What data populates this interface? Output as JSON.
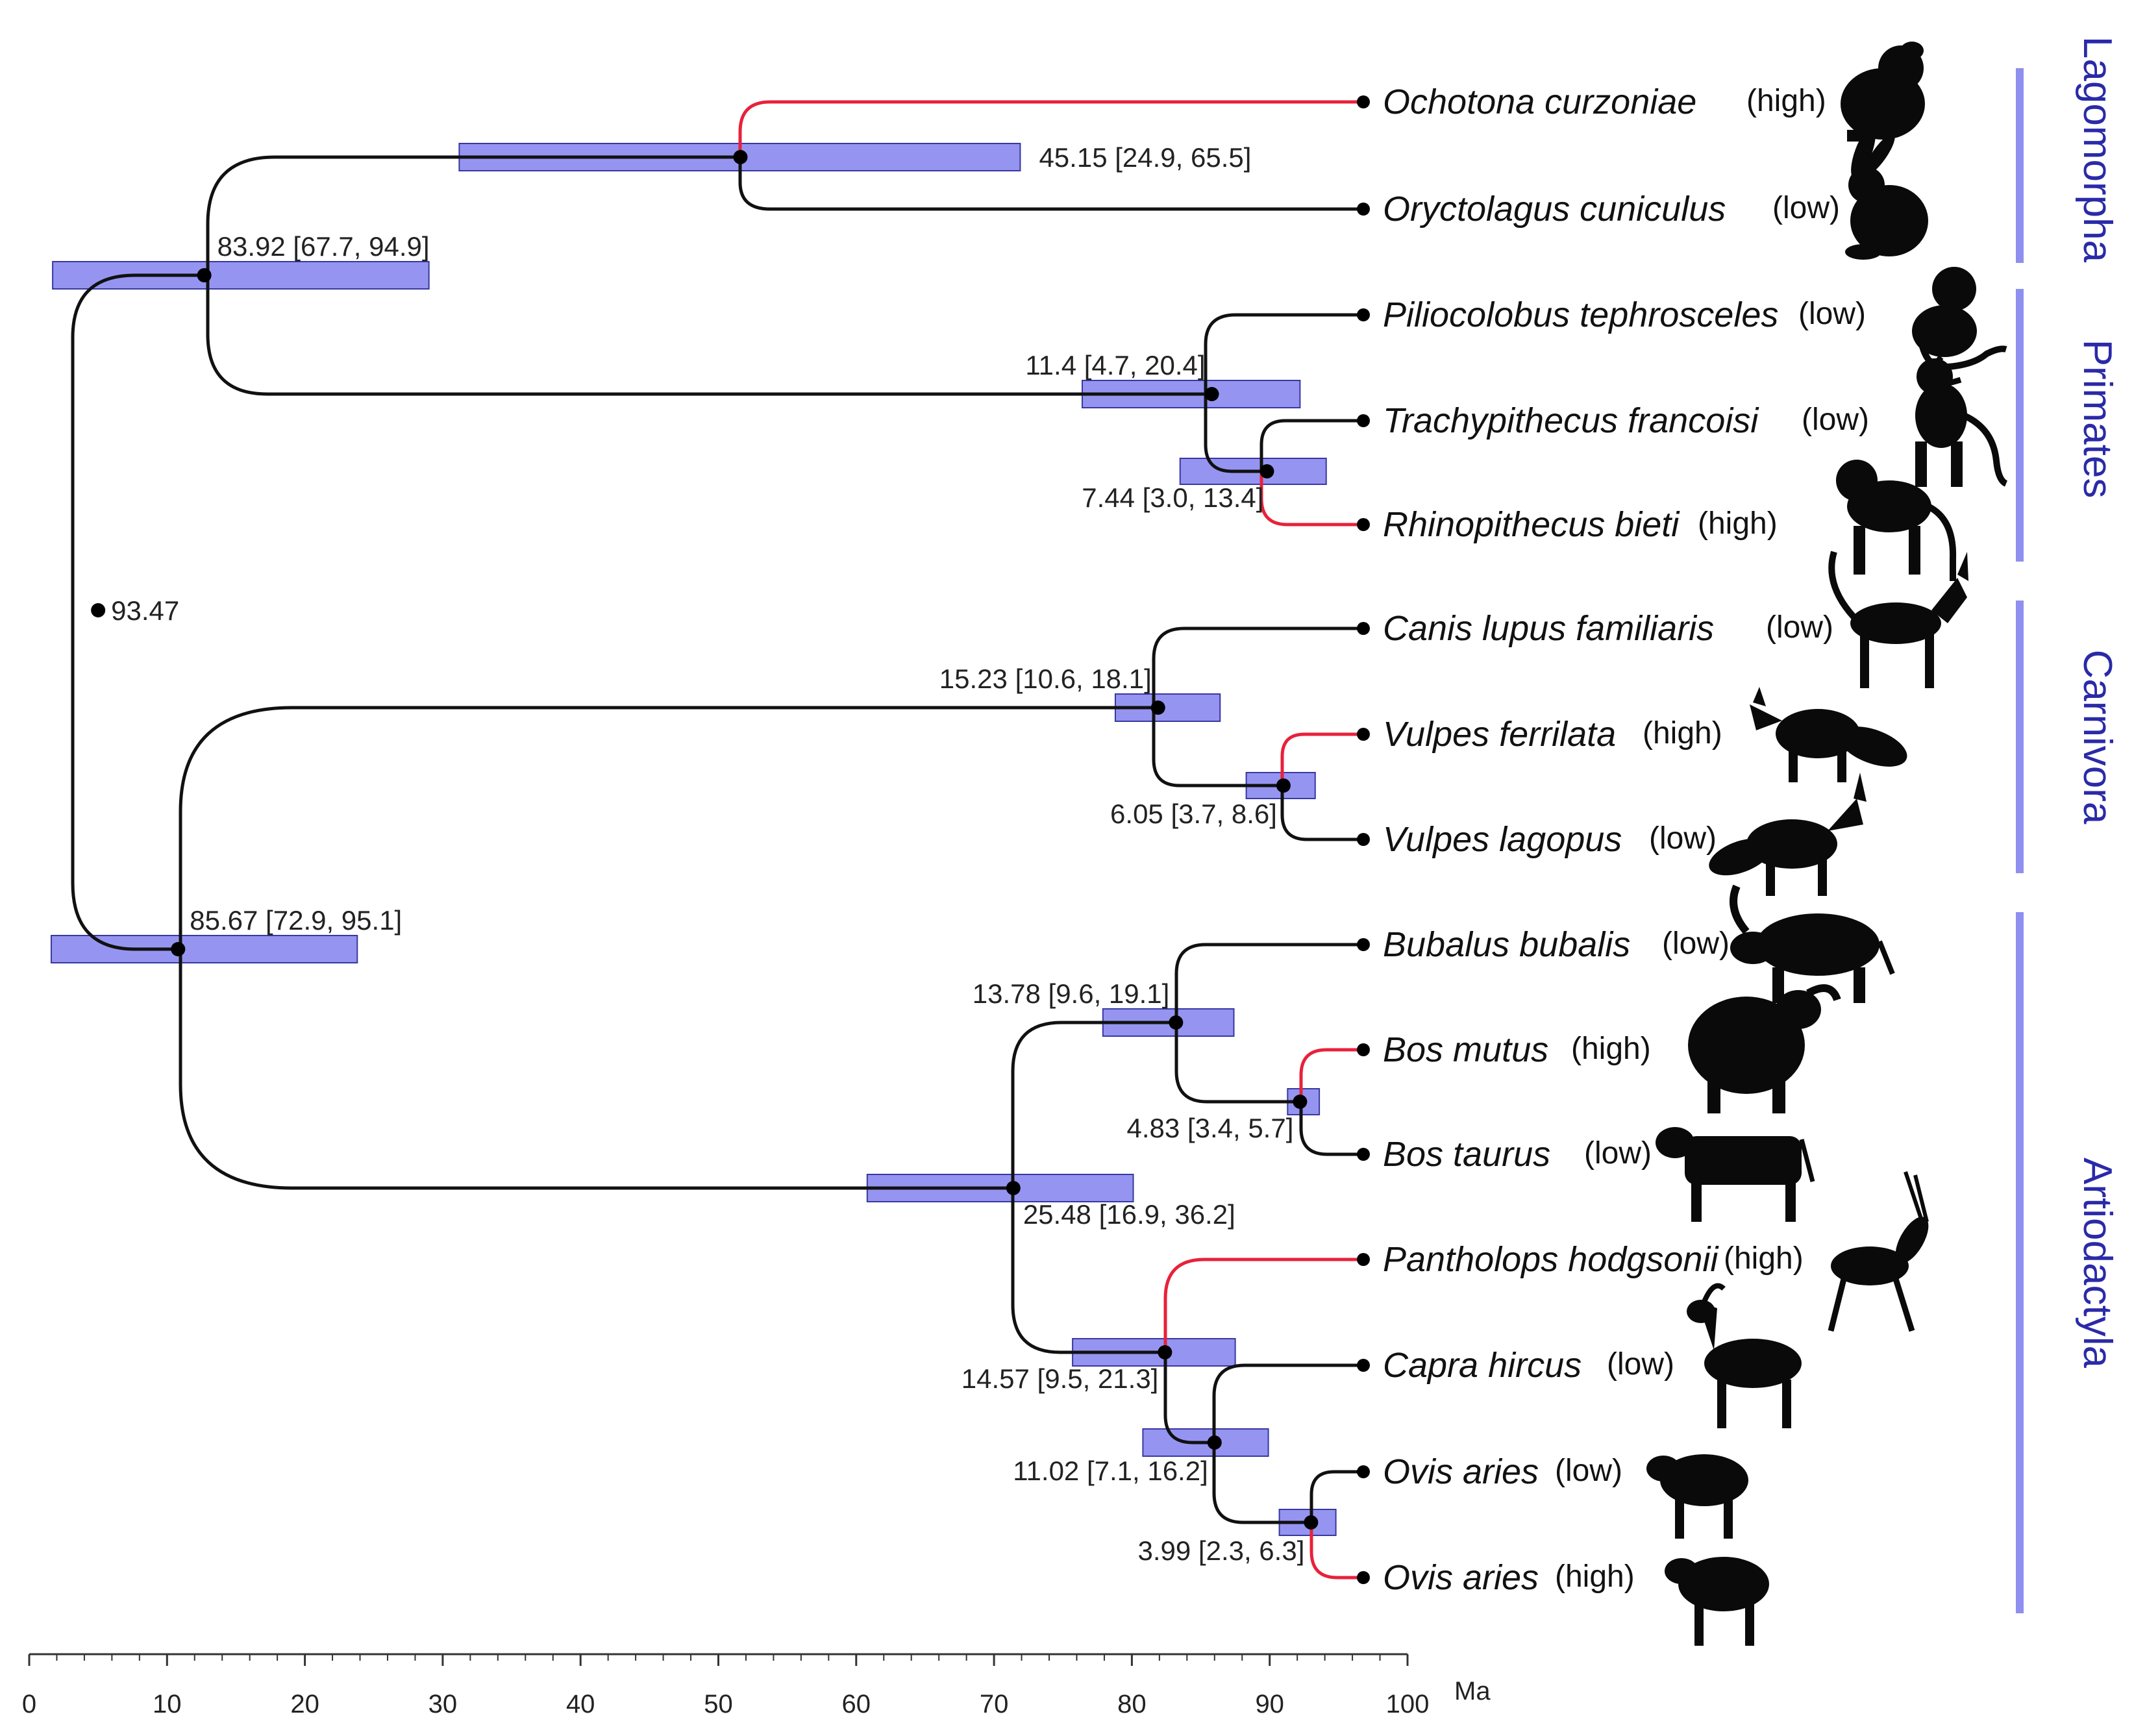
{
  "figure_type": "time-calibrated phylogenetic tree",
  "colors": {
    "branch": "#111111",
    "highlight_branch": "#e8213a",
    "confidence_bar_fill": "#8f8ff0",
    "confidence_bar_stroke": "#3838a0",
    "order_bar": "#8f8ff0",
    "order_text": "#2a2aa8"
  },
  "axis": {
    "unit": "Ma",
    "ticks": [
      "0",
      "10",
      "20",
      "30",
      "40",
      "50",
      "60",
      "70",
      "80",
      "90",
      "100"
    ],
    "range": [
      0,
      100
    ]
  },
  "taxa": [
    {
      "id": "ochotona",
      "name": "Ochotona curzoniae",
      "altitude": "(high)",
      "icon": "pika-silhouette-icon"
    },
    {
      "id": "oryctolagus",
      "name": "Oryctolagus cuniculus",
      "altitude": "(low)",
      "icon": "rabbit-silhouette-icon"
    },
    {
      "id": "piliocolobus",
      "name": "Piliocolobus tephrosceles",
      "altitude": "(low)",
      "icon": "colobus-monkey-silhouette-icon"
    },
    {
      "id": "trachypithecus",
      "name": "Trachypithecus francoisi",
      "altitude": "(low)",
      "icon": "langur-silhouette-icon"
    },
    {
      "id": "rhinopithecus",
      "name": "Rhinopithecus bieti",
      "altitude": "(high)",
      "icon": "snub-nosed-monkey-silhouette-icon"
    },
    {
      "id": "canis",
      "name": "Canis lupus familiaris",
      "altitude": "(low)",
      "icon": "dog-silhouette-icon"
    },
    {
      "id": "vferr",
      "name": "Vulpes ferrilata",
      "altitude": "(high)",
      "icon": "tibetan-fox-silhouette-icon"
    },
    {
      "id": "vlag",
      "name": "Vulpes lagopus",
      "altitude": "(low)",
      "icon": "arctic-fox-silhouette-icon"
    },
    {
      "id": "bubalus",
      "name": "Bubalus bubalis",
      "altitude": "(low)",
      "icon": "water-buffalo-silhouette-icon"
    },
    {
      "id": "bmutus",
      "name": "Bos mutus",
      "altitude": "(high)",
      "icon": "yak-silhouette-icon"
    },
    {
      "id": "btaurus",
      "name": "Bos taurus",
      "altitude": "(low)",
      "icon": "cow-silhouette-icon"
    },
    {
      "id": "pantholops",
      "name": "Pantholops hodgsonii",
      "altitude": "(high)",
      "icon": "antelope-silhouette-icon"
    },
    {
      "id": "capra",
      "name": "Capra hircus",
      "altitude": "(low)",
      "icon": "goat-silhouette-icon"
    },
    {
      "id": "ovis_low",
      "name": "Ovis aries",
      "altitude": "(low)",
      "icon": "sheep-silhouette-icon"
    },
    {
      "id": "ovis_high",
      "name": "Ovis aries",
      "altitude": "(high)",
      "icon": "sheep-silhouette-icon"
    }
  ],
  "nodes": [
    {
      "id": "root",
      "time": 5.0,
      "label": "93.47"
    },
    {
      "id": "glires",
      "time": 12.7,
      "label": "83.92 [67.7, 94.9]",
      "ci": [
        1.7,
        29.0
      ]
    },
    {
      "id": "lago",
      "time": 51.6,
      "label": "45.15 [24.9, 65.5]",
      "ci": [
        31.2,
        71.9
      ]
    },
    {
      "id": "primates",
      "time": 85.8,
      "label": "11.4 [4.7, 20.4]",
      "ci": [
        76.4,
        92.2
      ]
    },
    {
      "id": "colobinae",
      "time": 89.8,
      "label": "7.44 [3.0, 13.4]",
      "ci": [
        83.5,
        94.1
      ]
    },
    {
      "id": "laur",
      "time": 10.8,
      "label": "85.67 [72.9, 95.1]",
      "ci": [
        1.6,
        23.8
      ]
    },
    {
      "id": "carnivora",
      "time": 81.9,
      "label": "15.23 [10.6, 18.1]",
      "ci": [
        78.8,
        86.4
      ]
    },
    {
      "id": "vulpes",
      "time": 91.0,
      "label": "6.05 [3.7, 8.6]",
      "ci": [
        88.3,
        93.3
      ]
    },
    {
      "id": "artio",
      "time": 71.4,
      "label": "25.48 [16.9, 36.2]",
      "ci": [
        60.8,
        80.1
      ]
    },
    {
      "id": "bovini",
      "time": 83.2,
      "label": "13.78 [9.6, 19.1]",
      "ci": [
        77.9,
        87.4
      ]
    },
    {
      "id": "bos",
      "time": 92.2,
      "label": "4.83 [3.4, 5.7]",
      "ci": [
        91.3,
        93.6
      ]
    },
    {
      "id": "caprinae",
      "time": 82.4,
      "label": "14.57 [9.5, 21.3]",
      "ci": [
        75.7,
        87.5
      ]
    },
    {
      "id": "capraovis",
      "time": 86.0,
      "label": "11.02 [7.1, 16.2]",
      "ci": [
        80.8,
        89.9
      ]
    },
    {
      "id": "ovis",
      "time": 93.0,
      "label": "3.99 [2.3, 6.3]",
      "ci": [
        90.7,
        94.8
      ]
    }
  ],
  "orders": [
    {
      "id": "lagomorpha",
      "label": "Lagomorpha"
    },
    {
      "id": "primates",
      "label": "Primates"
    },
    {
      "id": "carnivora",
      "label": "Carnivora"
    },
    {
      "id": "artiodactyla",
      "label": "Artiodactyla"
    }
  ]
}
